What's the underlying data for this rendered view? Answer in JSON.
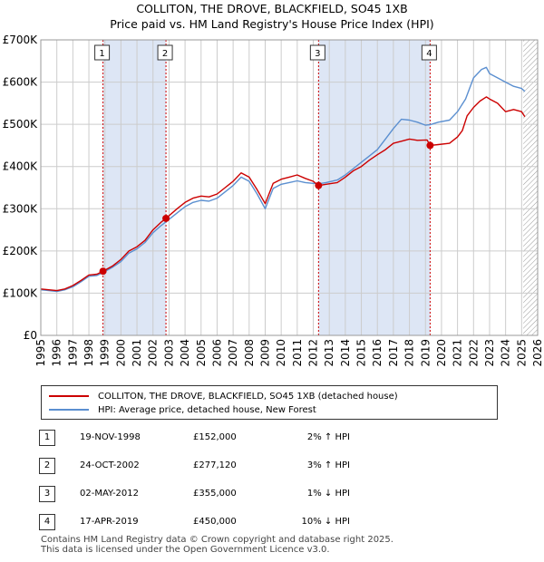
{
  "colors": {
    "price_line": "#cc0000",
    "hpi_line": "#5b8fd0",
    "shade": "#dde6f5",
    "grid": "#cccccc",
    "marker_border": "#cc0000"
  },
  "title": {
    "line1": "COLLITON, THE DROVE, BLACKFIELD, SO45 1XB",
    "line2": "Price paid vs. HM Land Registry's House Price Index (HPI)"
  },
  "legend": {
    "price_label": "COLLITON, THE DROVE, BLACKFIELD, SO45 1XB (detached house)",
    "hpi_label": "HPI: Average price, detached house, New Forest"
  },
  "transactions": [
    {
      "num": "1",
      "date": "19-NOV-1998",
      "price": "£152,000",
      "hpi": "2% ↑ HPI"
    },
    {
      "num": "2",
      "date": "24-OCT-2002",
      "price": "£277,120",
      "hpi": "3% ↑ HPI"
    },
    {
      "num": "3",
      "date": "02-MAY-2012",
      "price": "£355,000",
      "hpi": "1% ↓ HPI"
    },
    {
      "num": "4",
      "date": "17-APR-2019",
      "price": "£450,000",
      "hpi": "10% ↓ HPI"
    }
  ],
  "footer": {
    "line1": "Contains HM Land Registry data © Crown copyright and database right 2025.",
    "line2": "This data is licensed under the Open Government Licence v3.0."
  },
  "chart_data": {
    "type": "line",
    "xlim": [
      1995,
      2026
    ],
    "ylim": [
      0,
      700000
    ],
    "y_ticks": [
      0,
      100000,
      200000,
      300000,
      400000,
      500000,
      600000,
      700000
    ],
    "y_tick_labels": [
      "£0",
      "£100K",
      "£200K",
      "£300K",
      "£400K",
      "£500K",
      "£600K",
      "£700K"
    ],
    "x_tick_labels": [
      "1995",
      "1996",
      "1997",
      "1998",
      "1999",
      "2000",
      "2001",
      "2002",
      "2003",
      "2004",
      "2005",
      "2006",
      "2007",
      "2008",
      "2009",
      "2010",
      "2011",
      "2012",
      "2013",
      "2014",
      "2015",
      "2016",
      "2017",
      "2018",
      "2019",
      "2020",
      "2021",
      "2022",
      "2023",
      "2024",
      "2025",
      "2026"
    ],
    "shaded_ranges": [
      [
        1998.88,
        2002.81
      ],
      [
        2012.33,
        2019.29
      ]
    ],
    "future_hatch_from": 2025.1,
    "sales": [
      {
        "label": "1",
        "x": 1998.88,
        "y": 152000
      },
      {
        "label": "2",
        "x": 2002.81,
        "y": 277120
      },
      {
        "label": "3",
        "x": 2012.33,
        "y": 355000
      },
      {
        "label": "4",
        "x": 2019.29,
        "y": 450000
      }
    ],
    "series": [
      {
        "name": "COLLITON, THE DROVE, BLACKFIELD, SO45 1XB (detached house)",
        "x": [
          1995,
          1995.5,
          1996,
          1996.5,
          1997,
          1997.5,
          1998,
          1998.5,
          1998.88,
          1999.5,
          2000,
          2000.5,
          2001,
          2001.5,
          2002,
          2002.5,
          2002.81,
          2003.5,
          2004,
          2004.5,
          2005,
          2005.5,
          2006,
          2006.5,
          2007,
          2007.5,
          2008,
          2008.5,
          2009,
          2009.5,
          2010,
          2010.5,
          2011,
          2011.5,
          2012,
          2012.33,
          2012.8,
          2013.5,
          2014,
          2014.5,
          2015,
          2015.5,
          2016,
          2016.5,
          2017,
          2017.5,
          2018,
          2018.5,
          2019.1,
          2019.29,
          2019.8,
          2020.5,
          2021,
          2021.3,
          2021.6,
          2022,
          2022.4,
          2022.8,
          2023,
          2023.5,
          2024,
          2024.5,
          2025,
          2025.2
        ],
        "values": [
          110000,
          108000,
          106000,
          110000,
          118000,
          130000,
          143000,
          145000,
          152000,
          165000,
          180000,
          200000,
          210000,
          225000,
          250000,
          268000,
          277120,
          300000,
          315000,
          325000,
          330000,
          328000,
          335000,
          350000,
          365000,
          385000,
          375000,
          345000,
          312000,
          360000,
          370000,
          375000,
          380000,
          372000,
          365000,
          355000,
          358000,
          362000,
          375000,
          390000,
          400000,
          415000,
          428000,
          440000,
          455000,
          460000,
          465000,
          462000,
          463000,
          450000,
          452000,
          455000,
          470000,
          485000,
          520000,
          540000,
          555000,
          565000,
          560000,
          550000,
          530000,
          535000,
          530000,
          518000
        ]
      },
      {
        "name": "HPI: Average price, detached house, New Forest",
        "x": [
          1995,
          1995.5,
          1996,
          1996.5,
          1997,
          1997.5,
          1998,
          1998.5,
          1998.88,
          1999.5,
          2000,
          2000.5,
          2001,
          2001.5,
          2002,
          2002.5,
          2002.81,
          2003.5,
          2004,
          2004.5,
          2005,
          2005.5,
          2006,
          2006.5,
          2007,
          2007.5,
          2008,
          2008.5,
          2009,
          2009.5,
          2010,
          2010.5,
          2011,
          2011.5,
          2012,
          2012.33,
          2012.8,
          2013.5,
          2014,
          2014.5,
          2015,
          2015.5,
          2016,
          2016.5,
          2017,
          2017.5,
          2018,
          2018.5,
          2019,
          2019.29,
          2019.8,
          2020.5,
          2021,
          2021.5,
          2022,
          2022.5,
          2022.8,
          2023,
          2023.5,
          2024,
          2024.5,
          2025,
          2025.2
        ],
        "values": [
          108000,
          106000,
          104000,
          108000,
          115000,
          127000,
          140000,
          142000,
          149000,
          162000,
          175000,
          195000,
          205000,
          220000,
          243000,
          260000,
          269000,
          290000,
          305000,
          315000,
          320000,
          318000,
          325000,
          340000,
          355000,
          375000,
          365000,
          335000,
          300000,
          348000,
          358000,
          362000,
          366000,
          362000,
          360000,
          359000,
          362000,
          368000,
          380000,
          395000,
          410000,
          425000,
          440000,
          465000,
          490000,
          512000,
          510000,
          505000,
          498000,
          499000,
          505000,
          510000,
          530000,
          560000,
          610000,
          630000,
          635000,
          620000,
          610000,
          600000,
          590000,
          585000,
          578000
        ]
      }
    ]
  }
}
